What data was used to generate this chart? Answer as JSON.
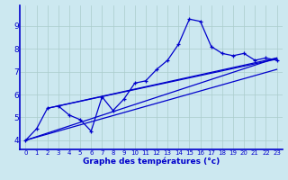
{
  "hours": [
    0,
    1,
    2,
    3,
    4,
    5,
    6,
    7,
    8,
    9,
    10,
    11,
    12,
    13,
    14,
    15,
    16,
    17,
    18,
    19,
    20,
    21,
    22,
    23
  ],
  "temps": [
    4.0,
    4.5,
    5.4,
    5.5,
    5.1,
    4.9,
    4.4,
    5.9,
    5.3,
    5.8,
    6.5,
    6.6,
    7.1,
    7.5,
    8.2,
    9.3,
    9.2,
    8.1,
    7.8,
    7.7,
    7.8,
    7.5,
    7.6,
    7.5
  ],
  "line_color": "#0000cc",
  "marker": "+",
  "bg_color": "#cce8f0",
  "grid_color": "#aacccc",
  "axis_color": "#0000cc",
  "xlabel": "Graphe des températures (°c)",
  "ylabel_ticks": [
    4,
    5,
    6,
    7,
    8,
    9
  ],
  "xlim": [
    -0.5,
    23.5
  ],
  "ylim": [
    3.6,
    9.9
  ],
  "trend_lines": [
    {
      "x0": 0,
      "y0": 4.0,
      "x1": 23,
      "y1": 7.6
    },
    {
      "x0": 2,
      "y0": 5.4,
      "x1": 23,
      "y1": 7.6
    },
    {
      "x0": 0,
      "y0": 4.0,
      "x1": 23,
      "y1": 7.1
    },
    {
      "x0": 3,
      "y0": 5.5,
      "x1": 23,
      "y1": 7.55
    }
  ]
}
